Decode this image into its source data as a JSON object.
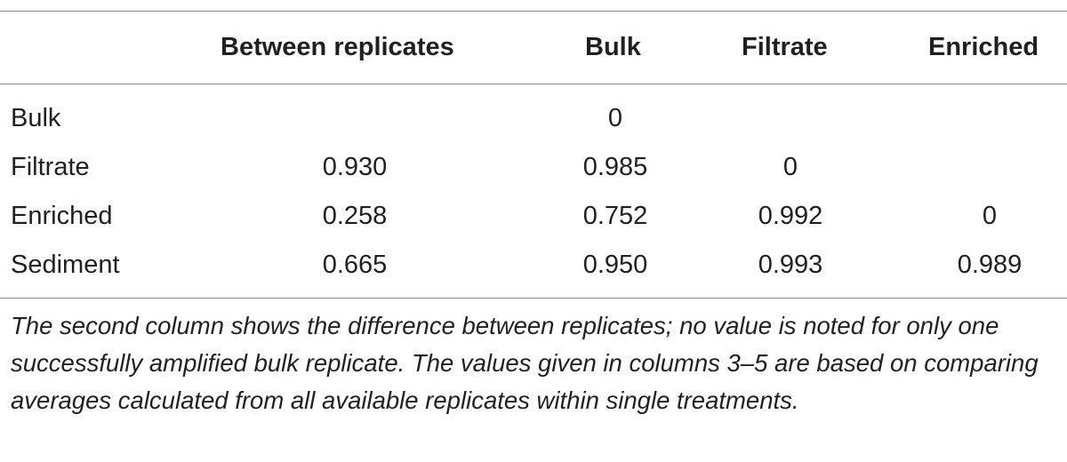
{
  "table": {
    "headers": [
      "",
      "Between replicates",
      "Bulk",
      "Filtrate",
      "Enriched"
    ],
    "rows": [
      {
        "label": "Bulk",
        "between": "",
        "bulk": "0",
        "filtrate": "",
        "enriched": ""
      },
      {
        "label": "Filtrate",
        "between": "0.930",
        "bulk": "0.985",
        "filtrate": "0",
        "enriched": ""
      },
      {
        "label": "Enriched",
        "between": "0.258",
        "bulk": "0.752",
        "filtrate": "0.992",
        "enriched": "0"
      },
      {
        "label": "Sediment",
        "between": "0.665",
        "bulk": "0.950",
        "filtrate": "0.993",
        "enriched": "0.989"
      }
    ],
    "footnote": "The second column shows the difference between replicates; no value is noted for only one successfully amplified bulk replicate. The values given in columns 3–5 are based on comparing averages calculated from all available replicates within single treatments."
  }
}
